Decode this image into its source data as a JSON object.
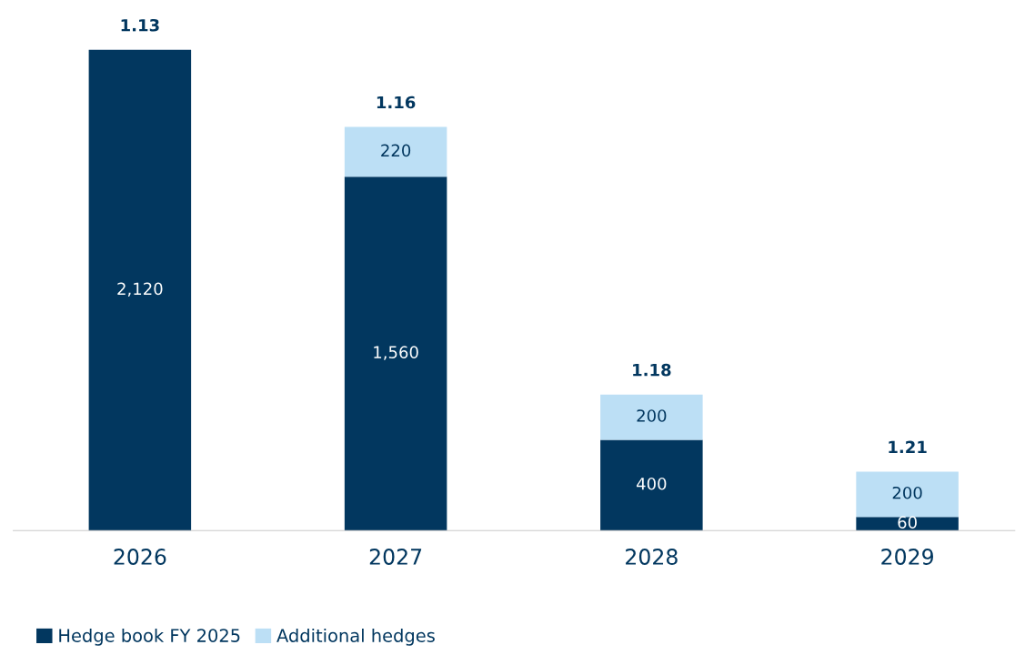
{
  "chart_data": {
    "type": "bar",
    "stacked": true,
    "categories": [
      "2026",
      "2027",
      "2028",
      "2029"
    ],
    "series": [
      {
        "name": "Hedge book FY 2025",
        "color": "#02375f",
        "values": [
          2120,
          1560,
          400,
          60
        ],
        "value_labels": [
          "2,120",
          "1,560",
          "400",
          "60"
        ]
      },
      {
        "name": "Additional hedges",
        "color": "#bcdff5",
        "values": [
          null,
          220,
          200,
          200
        ],
        "value_labels": [
          null,
          "220",
          "200",
          "200"
        ]
      }
    ],
    "legend": "bottom left",
    "grid": false,
    "annotations": [
      {
        "text": "1.13",
        "x": "2026",
        "y": 2120
      },
      {
        "text": "1.16",
        "x": "2027",
        "y": 1780
      },
      {
        "text": "1.18",
        "x": "2028",
        "y": 600
      },
      {
        "text": "1.21",
        "x": "2029",
        "y": 260
      }
    ]
  }
}
